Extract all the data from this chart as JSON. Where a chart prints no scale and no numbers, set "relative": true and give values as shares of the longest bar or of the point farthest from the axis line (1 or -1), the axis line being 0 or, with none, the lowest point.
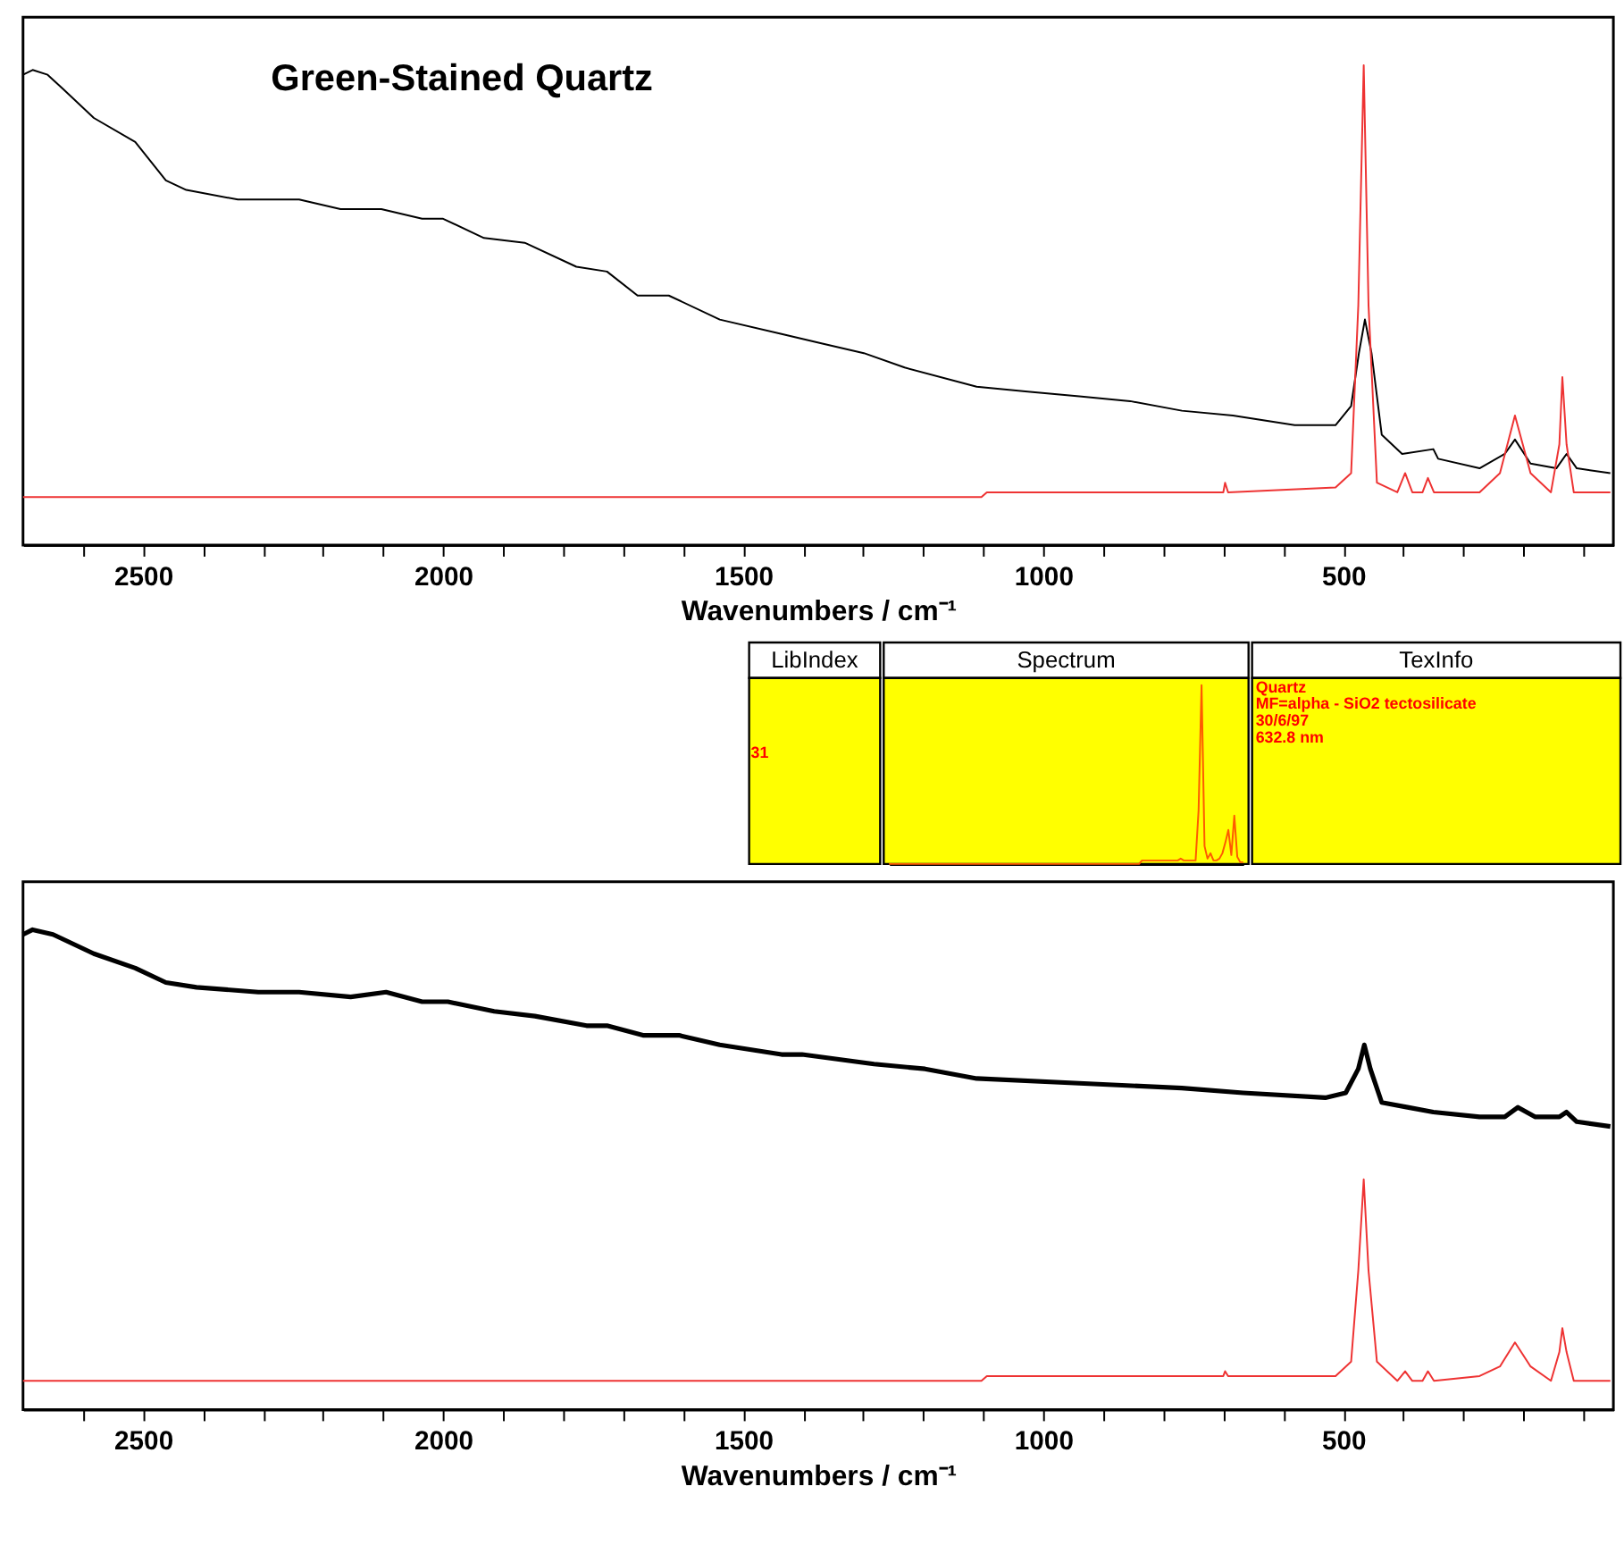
{
  "chart_data": [
    {
      "type": "line",
      "title": "Green-Stained Quartz",
      "xlabel": "Wavenumbers / cm⁻¹",
      "relative": true,
      "tick_labels": "x",
      "xlim": [
        2700,
        50
      ],
      "xticks": [
        {
          "value": 2600,
          "label": null
        },
        2500,
        {
          "value": 2400,
          "label": null
        },
        {
          "value": 2300,
          "label": null
        },
        {
          "value": 2200,
          "label": null
        },
        {
          "value": 2100,
          "label": null
        },
        2000,
        {
          "value": 1900,
          "label": null
        },
        {
          "value": 1800,
          "label": null
        },
        {
          "value": 1700,
          "label": null
        },
        {
          "value": 1600,
          "label": null
        },
        1500,
        {
          "value": 1400,
          "label": null
        },
        {
          "value": 1300,
          "label": null
        },
        {
          "value": 1200,
          "label": null
        },
        {
          "value": 1100,
          "label": null
        },
        1000,
        {
          "value": 900,
          "label": null
        },
        {
          "value": 800,
          "label": null
        },
        {
          "value": 700,
          "label": null
        },
        {
          "value": 600,
          "label": null
        },
        500,
        {
          "value": 400,
          "label": null
        },
        {
          "value": 300,
          "label": null
        },
        {
          "value": 200,
          "label": null
        },
        {
          "value": 100,
          "label": null
        }
      ],
      "series": [
        {
          "color": "#000000",
          "x": [
            2700,
            2684,
            2659,
            2633,
            2582,
            2513,
            2462,
            2428,
            2342,
            2240,
            2171,
            2103,
            2035,
            2000,
            1932,
            1864,
            1778,
            1727,
            1676,
            1624,
            1539,
            1436,
            1368,
            1299,
            1231,
            1111,
            1026,
            940,
            855,
            769,
            684,
            581,
            513,
            487,
            474,
            464,
            453,
            436,
            402,
            350,
            342,
            273,
            231,
            214,
            188,
            145,
            128,
            111,
            55
          ],
          "values": [
            0.98,
            0.99,
            0.98,
            0.95,
            0.89,
            0.84,
            0.76,
            0.74,
            0.72,
            0.72,
            0.7,
            0.7,
            0.68,
            0.68,
            0.64,
            0.63,
            0.58,
            0.57,
            0.52,
            0.52,
            0.47,
            0.44,
            0.42,
            0.4,
            0.37,
            0.33,
            0.32,
            0.31,
            0.3,
            0.28,
            0.27,
            0.25,
            0.25,
            0.29,
            0.4,
            0.47,
            0.4,
            0.23,
            0.19,
            0.2,
            0.18,
            0.16,
            0.19,
            0.22,
            0.17,
            0.16,
            0.19,
            0.16,
            0.15
          ]
        },
        {
          "color": "#ee3333",
          "x": [
            2700,
            1103,
            1094,
            855,
            700,
            697,
            692,
            513,
            487,
            475,
            466,
            458,
            444,
            410,
            397,
            385,
            368,
            359,
            349,
            273,
            239,
            214,
            188,
            154,
            140,
            135,
            128,
            116,
            55
          ],
          "values": [
            0.1,
            0.1,
            0.11,
            0.11,
            0.11,
            0.13,
            0.11,
            0.12,
            0.15,
            0.5,
            1.0,
            0.5,
            0.13,
            0.11,
            0.15,
            0.11,
            0.11,
            0.14,
            0.11,
            0.11,
            0.15,
            0.27,
            0.15,
            0.11,
            0.21,
            0.35,
            0.21,
            0.11,
            0.11
          ]
        }
      ]
    },
    {
      "type": "other",
      "categories": [
        "LibIndex",
        "Spectrum",
        "TexInfo"
      ],
      "annotations": [
        "31",
        "Quartz",
        "MF=alpha - SiO2  tectosilicate",
        "30/6/97",
        "632.8 nm"
      ]
    },
    {
      "type": "line",
      "relative": true,
      "categories": [
        null,
        null,
        null,
        null,
        null,
        null,
        null,
        null,
        null,
        null,
        null,
        null,
        null,
        null,
        null,
        null,
        null,
        null,
        null,
        null,
        null,
        null,
        null,
        null,
        null,
        null,
        null,
        null,
        null,
        null,
        null,
        null,
        null,
        null,
        null,
        null,
        null,
        null,
        null,
        null,
        null,
        null,
        null,
        null,
        null,
        null,
        null,
        null,
        null,
        null,
        null,
        null,
        null,
        null,
        null,
        null,
        null,
        null,
        null,
        null,
        null,
        null,
        null,
        null,
        null,
        null,
        null,
        null,
        null,
        null,
        null,
        null,
        null,
        null,
        null,
        null,
        null,
        null,
        null,
        null,
        null,
        null,
        null,
        null,
        null,
        null,
        null,
        null,
        null,
        null,
        null,
        null,
        null,
        null,
        null,
        null,
        null,
        null,
        null,
        null,
        null,
        null,
        null,
        null,
        null,
        null,
        null,
        null,
        null,
        null,
        null,
        null,
        null,
        null,
        null,
        null,
        null,
        null,
        null,
        null
      ],
      "series": [
        {
          "color": "#ff5a00",
          "values": [
            0,
            0,
            0,
            0,
            0,
            0,
            0,
            0,
            0,
            0,
            0,
            0,
            0,
            0,
            0,
            0,
            0,
            0,
            0,
            0,
            0,
            0,
            0,
            0,
            0,
            0,
            0,
            0,
            0,
            0,
            0,
            0,
            0,
            0,
            0,
            0,
            0,
            0,
            0,
            0,
            0,
            0,
            0,
            0,
            0,
            0,
            0,
            0,
            0,
            0,
            0,
            0,
            0,
            0,
            0,
            0,
            0,
            0,
            0,
            0,
            0,
            0,
            0,
            0,
            0,
            0,
            0,
            0,
            0,
            0,
            0,
            0,
            0,
            0,
            0,
            0,
            0,
            0,
            0,
            0,
            0,
            0,
            0,
            0,
            0,
            0.02,
            0.02,
            0.02,
            0.02,
            0.02,
            0.02,
            0.02,
            0.02,
            0.02,
            0.02,
            0.02,
            0.02,
            0.02,
            0.03,
            0.02,
            0.02,
            0.02,
            0.02,
            0.02,
            0.3,
            1.0,
            0.1,
            0.03,
            0.06,
            0.02,
            0.02,
            0.03,
            0.06,
            0.12,
            0.19,
            0.05,
            0.27,
            0.04,
            0.01,
            0.01
          ]
        }
      ]
    },
    {
      "type": "line",
      "xlabel": "Wavenumbers / cm⁻¹",
      "relative": true,
      "tick_labels": "x",
      "xlim": [
        2700,
        50
      ],
      "xticks": [
        {
          "value": 2600,
          "label": null
        },
        2500,
        {
          "value": 2400,
          "label": null
        },
        {
          "value": 2300,
          "label": null
        },
        {
          "value": 2200,
          "label": null
        },
        {
          "value": 2100,
          "label": null
        },
        2000,
        {
          "value": 1900,
          "label": null
        },
        {
          "value": 1800,
          "label": null
        },
        {
          "value": 1700,
          "label": null
        },
        {
          "value": 1600,
          "label": null
        },
        1500,
        {
          "value": 1400,
          "label": null
        },
        {
          "value": 1300,
          "label": null
        },
        {
          "value": 1200,
          "label": null
        },
        {
          "value": 1100,
          "label": null
        },
        1000,
        {
          "value": 900,
          "label": null
        },
        {
          "value": 800,
          "label": null
        },
        {
          "value": 700,
          "label": null
        },
        {
          "value": 600,
          "label": null
        },
        500,
        {
          "value": 400,
          "label": null
        },
        {
          "value": 300,
          "label": null
        },
        {
          "value": 200,
          "label": null
        },
        {
          "value": 100,
          "label": null
        }
      ],
      "series": [
        {
          "color": "#000000",
          "x": [
            2700,
            2684,
            2650,
            2582,
            2513,
            2462,
            2411,
            2308,
            2240,
            2154,
            2095,
            2035,
            1992,
            1915,
            1847,
            1761,
            1727,
            1667,
            1607,
            1539,
            1436,
            1402,
            1282,
            1197,
            1111,
            940,
            769,
            667,
            530,
            496,
            475,
            465,
            455,
            436,
            393,
            350,
            273,
            231,
            209,
            180,
            140,
            128,
            111,
            55
          ],
          "values": [
            0.99,
            1.0,
            0.99,
            0.95,
            0.92,
            0.89,
            0.88,
            0.87,
            0.87,
            0.86,
            0.87,
            0.85,
            0.85,
            0.83,
            0.82,
            0.8,
            0.8,
            0.78,
            0.78,
            0.76,
            0.74,
            0.74,
            0.72,
            0.71,
            0.69,
            0.68,
            0.67,
            0.66,
            0.65,
            0.66,
            0.71,
            0.76,
            0.71,
            0.64,
            0.63,
            0.62,
            0.61,
            0.61,
            0.63,
            0.61,
            0.61,
            0.62,
            0.6,
            0.59
          ]
        },
        {
          "color": "#ee3333",
          "x": [
            2700,
            1103,
            1094,
            855,
            700,
            697,
            692,
            513,
            487,
            475,
            466,
            458,
            444,
            410,
            397,
            385,
            368,
            359,
            349,
            273,
            239,
            214,
            188,
            154,
            140,
            135,
            128,
            116,
            55
          ],
          "values": [
            0.06,
            0.06,
            0.07,
            0.07,
            0.07,
            0.08,
            0.07,
            0.07,
            0.1,
            0.29,
            0.48,
            0.29,
            0.1,
            0.06,
            0.08,
            0.06,
            0.06,
            0.08,
            0.06,
            0.07,
            0.09,
            0.14,
            0.09,
            0.06,
            0.12,
            0.17,
            0.12,
            0.06,
            0.06
          ]
        }
      ]
    }
  ]
}
